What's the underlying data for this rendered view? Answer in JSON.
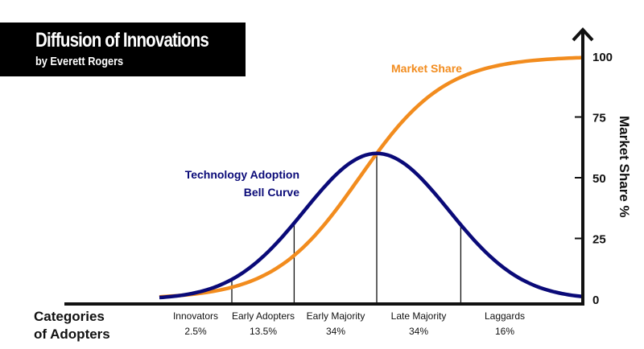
{
  "header": {
    "title": "Diffusion of Innovations",
    "subtitle": "by Everett Rogers"
  },
  "colors": {
    "market_share": "#f28c1e",
    "bell_curve": "#0a0a78",
    "axis": "#111111"
  },
  "chart_data": {
    "type": "line",
    "title": "Diffusion of Innovations",
    "subtitle": "by Everett Rogers",
    "xlabel": "Categories of Adopters",
    "xlabel_lines": [
      "Categories",
      "of Adopters"
    ],
    "ylabel": "Market Share %",
    "ylim": [
      0,
      100
    ],
    "xlim_sd": [
      -3,
      2.85
    ],
    "yticks": [
      0,
      25,
      50,
      75,
      100
    ],
    "ytick_labels": [
      "0",
      "25",
      "50",
      "75",
      "100"
    ],
    "grid": false,
    "series": [
      {
        "name": "Market Share",
        "label": "Market Share",
        "color": "#f28c1e",
        "kind": "logistic",
        "midpoint_sd": -0.24,
        "scale_sd": 0.593,
        "max": 100
      },
      {
        "name": "Technology Adoption Bell Curve",
        "label_lines": [
          "Technology Adoption",
          "Bell Curve"
        ],
        "color": "#0a0a78",
        "kind": "normal",
        "mean_sd": 0,
        "peak": 60
      }
    ],
    "dividers_sd": [
      -2,
      -1.14,
      0,
      1.16
    ],
    "categories": [
      {
        "name": "Innovators",
        "share": "2.5%"
      },
      {
        "name": "Early Adopters",
        "share": "13.5%"
      },
      {
        "name": "Early Majority",
        "share": "34%"
      },
      {
        "name": "Late Majority",
        "share": "34%"
      },
      {
        "name": "Laggards",
        "share": "16%"
      }
    ]
  }
}
